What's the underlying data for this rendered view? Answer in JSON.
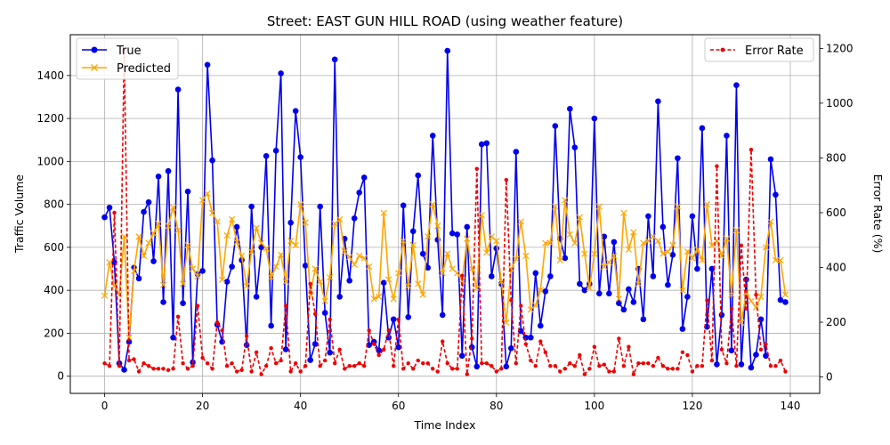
{
  "chart_data": {
    "type": "line",
    "title": "Street: EAST GUN HILL ROAD (using weather feature)",
    "xlabel": "Time Index",
    "ylabel": "Traffic Volume",
    "y2label": "Error Rate (%)",
    "xlim": [
      -7,
      146
    ],
    "ylim": [
      -80,
      1590
    ],
    "y2lim": [
      -60,
      1250
    ],
    "x_ticks": [
      0,
      20,
      40,
      60,
      80,
      100,
      120,
      140
    ],
    "y_ticks": [
      0,
      200,
      400,
      600,
      800,
      1000,
      1200,
      1400
    ],
    "y2_ticks": [
      0,
      200,
      400,
      600,
      800,
      1000,
      1200
    ],
    "grid": true,
    "legend_left": {
      "placement": "upper-left",
      "entries": [
        "True",
        "Predicted"
      ]
    },
    "legend_right": {
      "placement": "upper-right",
      "entries": [
        "Error Rate"
      ]
    },
    "colors": {
      "true": "#0000ee",
      "predicted": "#ffa500",
      "error": "#ee0000"
    },
    "series": [
      {
        "name": "True",
        "axis": "left",
        "values": [
          740,
          785,
          530,
          60,
          30,
          160,
          505,
          455,
          765,
          810,
          535,
          930,
          345,
          955,
          180,
          1335,
          340,
          860,
          65,
          475,
          490,
          1450,
          1005,
          240,
          160,
          440,
          510,
          695,
          540,
          145,
          790,
          370,
          600,
          1025,
          235,
          1050,
          1410,
          125,
          715,
          1235,
          1020,
          515,
          75,
          150,
          790,
          295,
          110,
          1475,
          370,
          640,
          445,
          735,
          855,
          925,
          145,
          160,
          120,
          435,
          180,
          265,
          135,
          795,
          275,
          675,
          935,
          570,
          505,
          1120,
          635,
          285,
          1515,
          665,
          660,
          95,
          695,
          135,
          45,
          1080,
          1085,
          465,
          595,
          430,
          45,
          130,
          1045,
          210,
          180,
          180,
          480,
          235,
          395,
          465,
          1165,
          640,
          550,
          1245,
          1065,
          430,
          400,
          430,
          1200,
          385,
          650,
          385,
          625,
          340,
          310,
          405,
          345,
          500,
          265,
          745,
          465,
          1280,
          695,
          425,
          565,
          1015,
          220,
          370,
          745,
          500,
          1155,
          230,
          500,
          55,
          285,
          1120,
          120,
          1355,
          55,
          450,
          40,
          100,
          265,
          95,
          1010,
          845,
          355,
          345
        ]
      },
      {
        "name": "Predicted",
        "axis": "left",
        "values": [
          375,
          530,
          420,
          380,
          650,
          180,
          490,
          650,
          560,
          620,
          665,
          710,
          425,
          700,
          785,
          680,
          430,
          610,
          500,
          465,
          820,
          850,
          760,
          720,
          450,
          655,
          730,
          625,
          560,
          420,
          580,
          690,
          620,
          595,
          460,
          510,
          565,
          440,
          630,
          610,
          800,
          715,
          380,
          500,
          440,
          350,
          460,
          710,
          730,
          580,
          555,
          520,
          560,
          550,
          510,
          360,
          370,
          760,
          450,
          360,
          480,
          630,
          420,
          610,
          430,
          380,
          650,
          800,
          700,
          480,
          570,
          500,
          480,
          445,
          640,
          500,
          410,
          750,
          575,
          650,
          630,
          440,
          250,
          500,
          545,
          720,
          560,
          310,
          330,
          400,
          620,
          620,
          790,
          540,
          820,
          660,
          620,
          740,
          570,
          410,
          570,
          790,
          510,
          530,
          560,
          360,
          760,
          590,
          670,
          430,
          620,
          630,
          650,
          630,
          570,
          580,
          610,
          790,
          400,
          580,
          550,
          590,
          540,
          800,
          610,
          630,
          560,
          640,
          380,
          680,
          250,
          390,
          350,
          320,
          370,
          600,
          720,
          540,
          540,
          380
        ]
      },
      {
        "name": "Error Rate",
        "axis": "right",
        "values": [
          50,
          40,
          600,
          40,
          1190,
          60,
          65,
          20,
          50,
          40,
          30,
          30,
          30,
          25,
          30,
          220,
          50,
          30,
          40,
          260,
          70,
          50,
          30,
          200,
          170,
          40,
          50,
          20,
          25,
          150,
          20,
          90,
          10,
          40,
          105,
          50,
          60,
          260,
          20,
          50,
          20,
          40,
          340,
          230,
          40,
          60,
          210,
          50,
          100,
          30,
          40,
          40,
          50,
          40,
          170,
          120,
          80,
          100,
          170,
          40,
          210,
          30,
          50,
          30,
          60,
          50,
          50,
          30,
          20,
          130,
          50,
          30,
          30,
          370,
          10,
          140,
          760,
          50,
          50,
          40,
          20,
          30,
          720,
          280,
          50,
          260,
          120,
          60,
          40,
          130,
          90,
          40,
          40,
          20,
          30,
          50,
          40,
          80,
          10,
          30,
          110,
          40,
          45,
          20,
          20,
          140,
          40,
          110,
          10,
          50,
          50,
          50,
          40,
          70,
          40,
          30,
          30,
          30,
          90,
          80,
          20,
          40,
          40,
          280,
          60,
          770,
          100,
          50,
          250,
          40,
          480,
          250,
          830,
          300,
          100,
          120,
          40,
          40,
          60,
          20
        ]
      }
    ]
  }
}
